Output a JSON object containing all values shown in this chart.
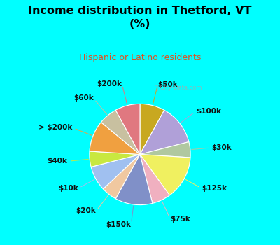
{
  "title": "Income distribution in Thetford, VT\n(%)",
  "subtitle": "Hispanic or Latino residents",
  "background_top": "#00FFFF",
  "background_chart_color": "#d4efe8",
  "title_color": "#000000",
  "subtitle_color": "#e05020",
  "labels": [
    "$50k",
    "$100k",
    "$30k",
    "$125k",
    "$75k",
    "$150k",
    "$20k",
    "$10k",
    "$40k",
    "> $200k",
    "$60k",
    "$200k"
  ],
  "values": [
    8,
    13,
    5,
    14,
    6,
    12,
    5,
    8,
    5,
    10,
    6,
    8
  ],
  "colors": [
    "#c8a820",
    "#b0a0d8",
    "#b0c8a0",
    "#f0f060",
    "#f0b0c0",
    "#8090c8",
    "#f0c8a0",
    "#a0c0f0",
    "#c8e840",
    "#f0a040",
    "#c8c0a0",
    "#e07880"
  ],
  "startangle": 90,
  "wedge_edge_color": "#ffffff",
  "label_fontsize": 7.5,
  "watermark": "ⓘ City-Data.com"
}
